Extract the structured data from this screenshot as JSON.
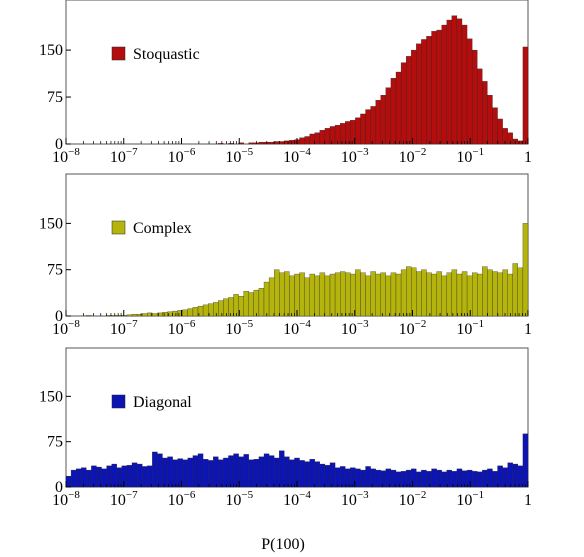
{
  "chart_data": [
    {
      "type": "bar",
      "x_scale": "log",
      "xlim": [
        1e-08,
        1
      ],
      "ylim": [
        0,
        230
      ],
      "yticks": [
        0,
        75,
        150
      ],
      "ytick_labels": [
        "0",
        "75",
        "150"
      ],
      "xtick_labels": [
        {
          "base": "10",
          "exp": "−8"
        },
        {
          "base": "10",
          "exp": "−7"
        },
        {
          "base": "10",
          "exp": "−6"
        },
        {
          "base": "10",
          "exp": "−5"
        },
        {
          "base": "10",
          "exp": "−4"
        },
        {
          "base": "10",
          "exp": "−3"
        },
        {
          "base": "10",
          "exp": "−2"
        },
        {
          "base": "10",
          "exp": "−1"
        },
        {
          "base": "1",
          "exp": ""
        }
      ],
      "legend_position": "upper-left",
      "series": [
        {
          "name": "Stoquastic",
          "color": "#b40d0d",
          "values": [
            0,
            0,
            0,
            0,
            0,
            0,
            0,
            0,
            0,
            0,
            0,
            0,
            0,
            0,
            0,
            0,
            0,
            0,
            0,
            0,
            0,
            0,
            0,
            0,
            0,
            0,
            0,
            0,
            0,
            0,
            1,
            0,
            1,
            0,
            2,
            0,
            2,
            2,
            3,
            3,
            3,
            4,
            4,
            5,
            6,
            7,
            10,
            12,
            16,
            18,
            22,
            25,
            28,
            30,
            33,
            36,
            38,
            42,
            48,
            55,
            60,
            70,
            78,
            90,
            105,
            115,
            130,
            140,
            150,
            160,
            167,
            172,
            180,
            182,
            190,
            198,
            205,
            200,
            190,
            168,
            150,
            120,
            100,
            78,
            58,
            40,
            25,
            18,
            8,
            5,
            155
          ]
        }
      ]
    },
    {
      "type": "bar",
      "x_scale": "log",
      "xlim": [
        1e-08,
        1
      ],
      "ylim": [
        0,
        230
      ],
      "yticks": [
        0,
        75,
        150
      ],
      "ytick_labels": [
        "0",
        "75",
        "150"
      ],
      "xtick_labels": [
        {
          "base": "10",
          "exp": "−8"
        },
        {
          "base": "10",
          "exp": "−7"
        },
        {
          "base": "10",
          "exp": "−6"
        },
        {
          "base": "10",
          "exp": "−5"
        },
        {
          "base": "10",
          "exp": "−4"
        },
        {
          "base": "10",
          "exp": "−3"
        },
        {
          "base": "10",
          "exp": "−2"
        },
        {
          "base": "10",
          "exp": "−1"
        },
        {
          "base": "1",
          "exp": ""
        }
      ],
      "legend_position": "upper-left",
      "series": [
        {
          "name": "Complex",
          "color": "#b4b40d",
          "values": [
            0,
            0,
            0,
            0,
            1,
            0,
            0,
            0,
            1,
            1,
            1,
            1,
            2,
            3,
            3,
            4,
            5,
            4,
            5,
            6,
            7,
            8,
            9,
            10,
            12,
            14,
            16,
            18,
            20,
            22,
            25,
            28,
            30,
            35,
            32,
            40,
            38,
            42,
            45,
            55,
            62,
            75,
            70,
            72,
            65,
            68,
            70,
            62,
            68,
            65,
            70,
            65,
            68,
            70,
            72,
            70,
            68,
            75,
            70,
            65,
            72,
            68,
            70,
            65,
            70,
            68,
            75,
            80,
            78,
            72,
            75,
            70,
            68,
            72,
            65,
            70,
            75,
            68,
            72,
            65,
            70,
            68,
            80,
            75,
            72,
            70,
            75,
            68,
            85,
            78,
            150
          ]
        }
      ]
    },
    {
      "type": "bar",
      "x_scale": "log",
      "xlim": [
        1e-08,
        1
      ],
      "ylim": [
        0,
        230
      ],
      "yticks": [
        0,
        75,
        150
      ],
      "ytick_labels": [
        "0",
        "75",
        "150"
      ],
      "xtick_labels": [
        {
          "base": "10",
          "exp": "−8"
        },
        {
          "base": "10",
          "exp": "−7"
        },
        {
          "base": "10",
          "exp": "−6"
        },
        {
          "base": "10",
          "exp": "−5"
        },
        {
          "base": "10",
          "exp": "−4"
        },
        {
          "base": "10",
          "exp": "−3"
        },
        {
          "base": "10",
          "exp": "−2"
        },
        {
          "base": "10",
          "exp": "−1"
        },
        {
          "base": "1",
          "exp": ""
        }
      ],
      "xlabel": "P(100)",
      "legend_position": "upper-left",
      "series": [
        {
          "name": "Diagonal",
          "color": "#0d14b4",
          "values": [
            18,
            28,
            30,
            32,
            28,
            35,
            33,
            30,
            35,
            38,
            32,
            35,
            36,
            40,
            38,
            34,
            35,
            58,
            55,
            48,
            50,
            45,
            47,
            45,
            48,
            52,
            55,
            46,
            44,
            50,
            45,
            48,
            52,
            55,
            50,
            54,
            45,
            46,
            50,
            55,
            52,
            48,
            60,
            50,
            45,
            48,
            44,
            42,
            46,
            42,
            38,
            36,
            40,
            32,
            34,
            30,
            32,
            30,
            28,
            34,
            30,
            28,
            27,
            30,
            28,
            25,
            26,
            28,
            30,
            25,
            28,
            26,
            30,
            28,
            25,
            28,
            26,
            30,
            27,
            28,
            26,
            25,
            28,
            30,
            26,
            35,
            32,
            40,
            38,
            35,
            88
          ]
        }
      ]
    }
  ]
}
